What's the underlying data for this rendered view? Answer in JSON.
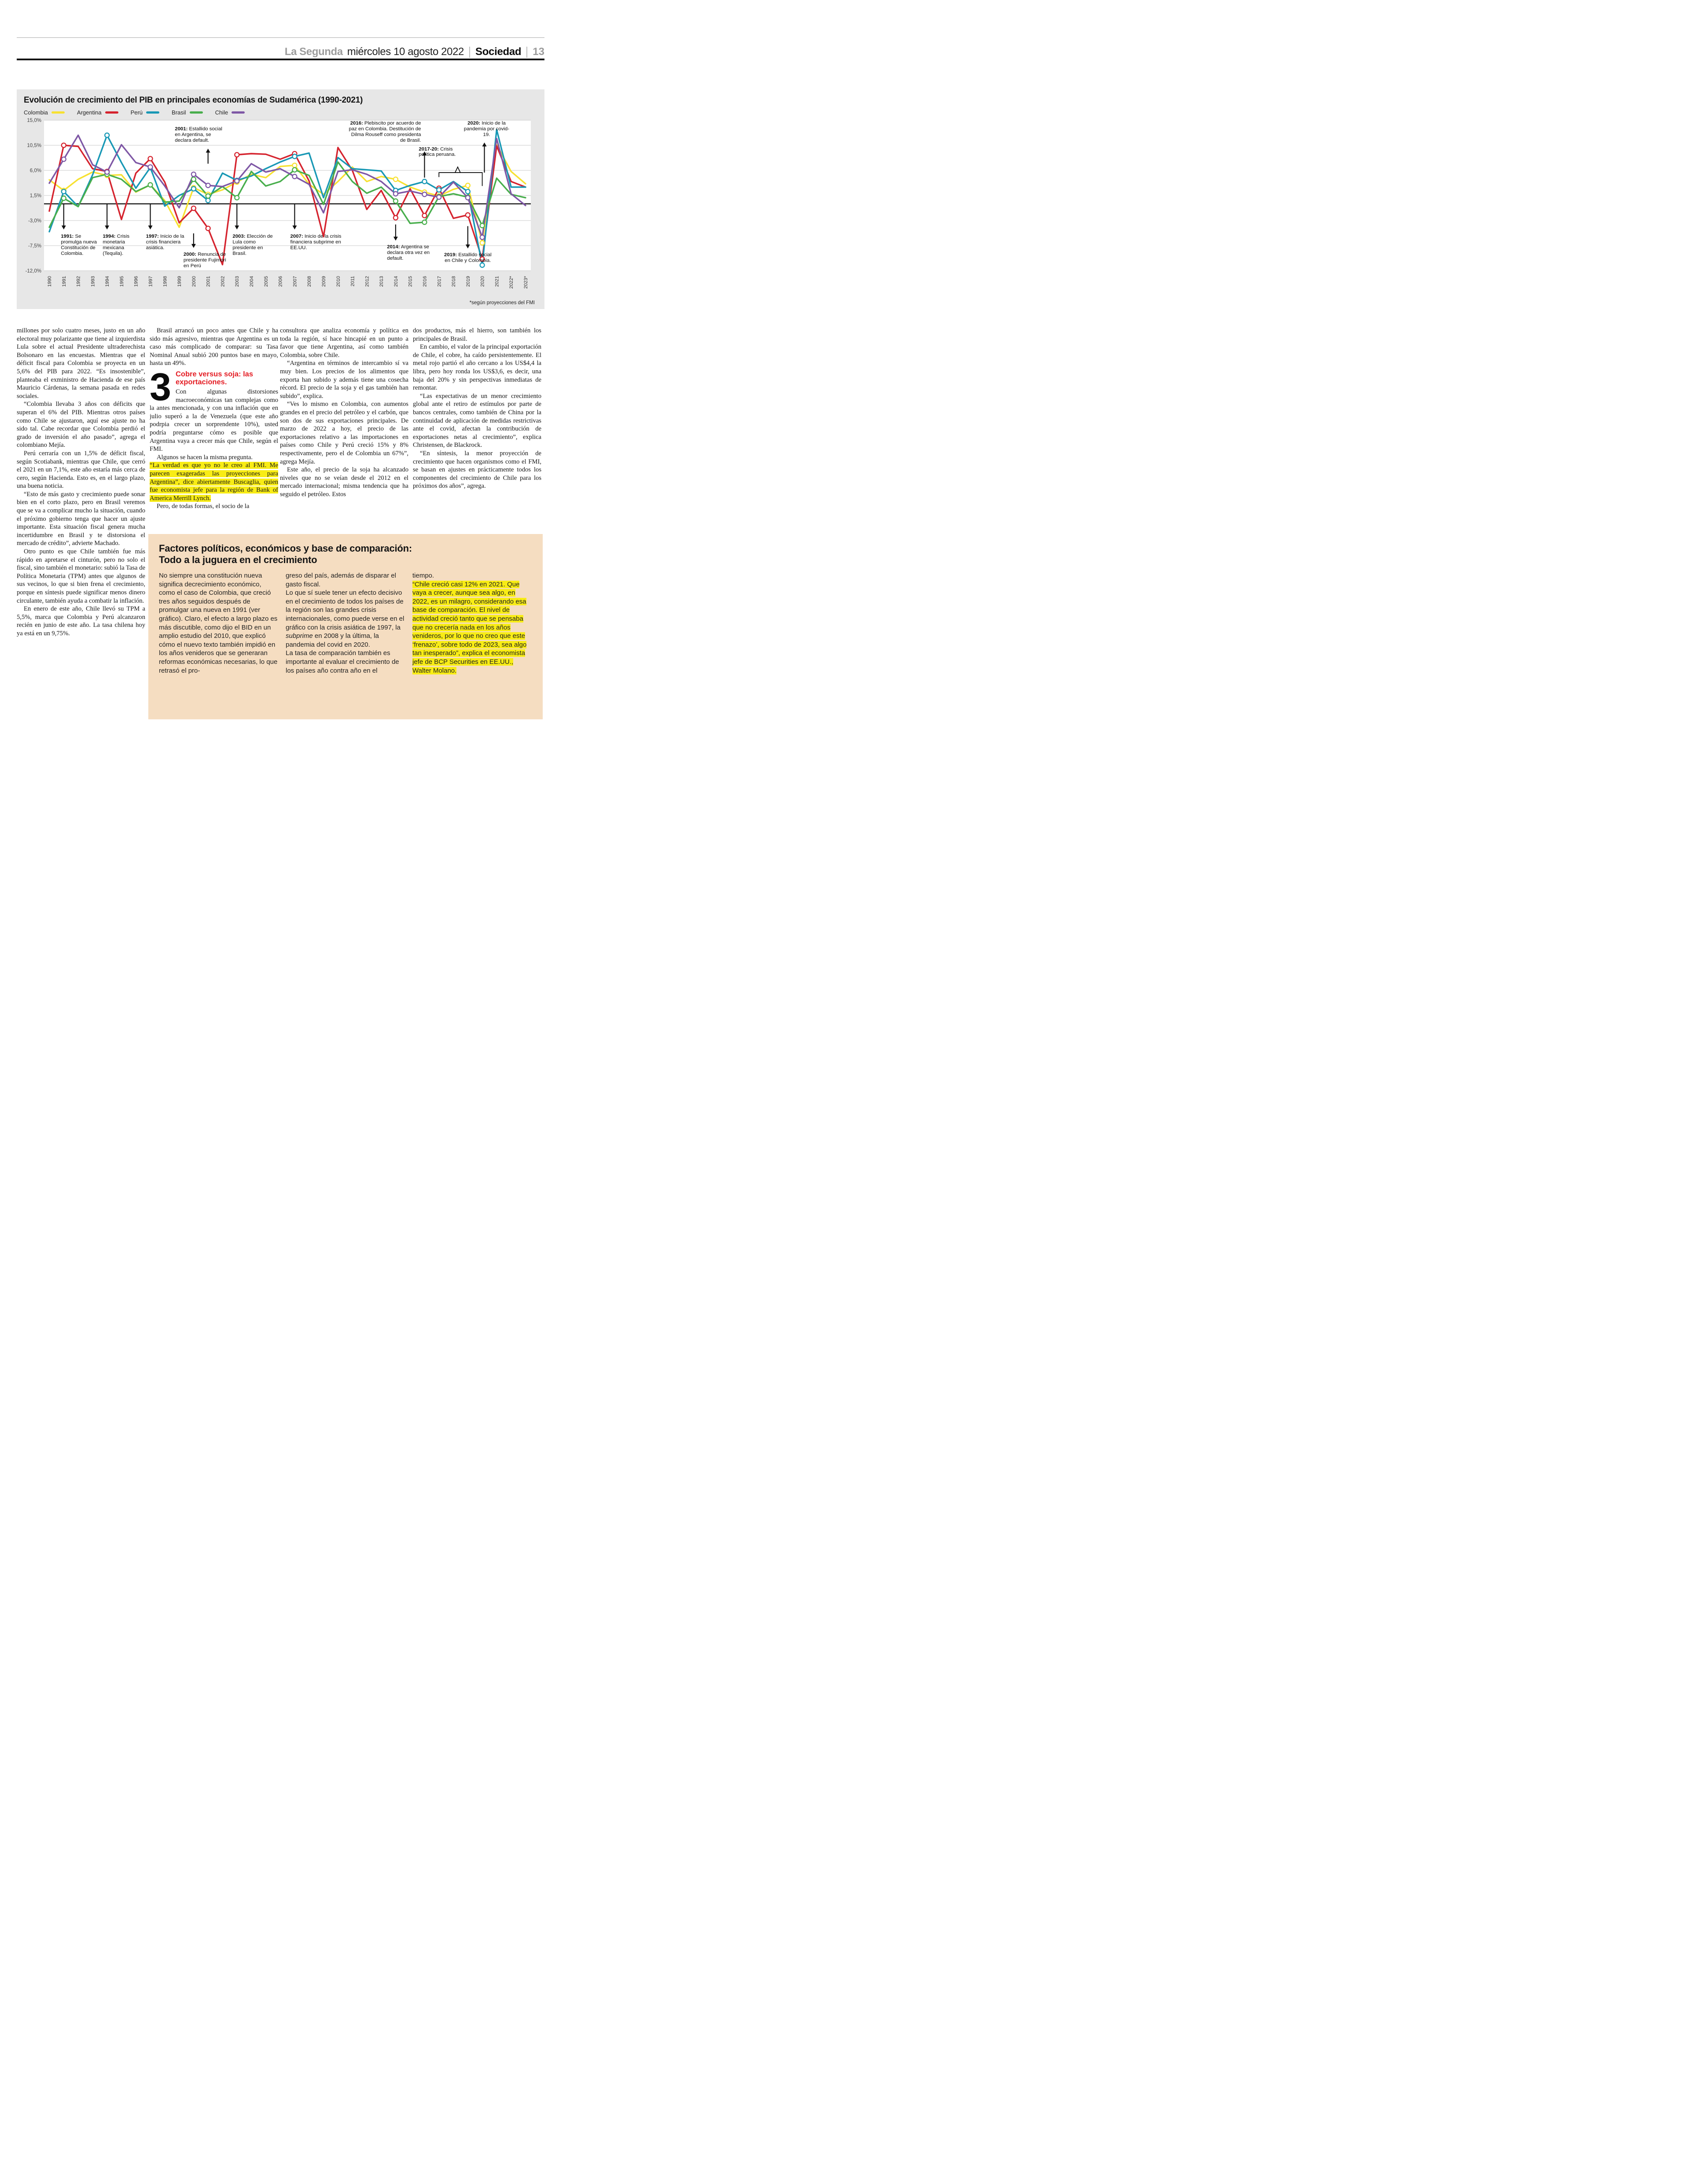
{
  "header": {
    "brand": "La Segunda",
    "date": "miércoles 10 agosto 2022",
    "section": "Sociedad",
    "page_number": "13"
  },
  "chart_data": {
    "type": "line",
    "title": "Evolución de crecimiento del PIB en principales economías de Sudamérica (1990-2021)",
    "footnote": "*según proyecciones del FMI",
    "panel_bg": "#e7e7e7",
    "plot_bg": "#ffffff",
    "ylim": [
      -12,
      15
    ],
    "yticks": [
      15.0,
      10.5,
      6.0,
      1.5,
      -3.0,
      -7.5,
      -12.0
    ],
    "zero_line": 0,
    "x": [
      "1990",
      "1991",
      "1992",
      "1993",
      "1994",
      "1995",
      "1996",
      "1997",
      "1998",
      "1999",
      "2000",
      "2001",
      "2002",
      "2003",
      "2004",
      "2005",
      "2006",
      "2007",
      "2008",
      "2009",
      "2010",
      "2011",
      "2012",
      "2013",
      "2014",
      "2015",
      "2016",
      "2017",
      "2018",
      "2019",
      "2020",
      "2021",
      "2022*",
      "2023*"
    ],
    "marker_years": [
      1991,
      1994,
      1997,
      2000,
      2001,
      2003,
      2007,
      2014,
      2016,
      2017,
      2019,
      2020
    ],
    "series": [
      {
        "name": "Colombia",
        "color": "#f7e131",
        "values": [
          4.3,
          2.4,
          4.4,
          5.7,
          5.1,
          5.2,
          2.1,
          3.4,
          0.6,
          -4.2,
          2.9,
          1.7,
          2.5,
          3.9,
          5.3,
          4.7,
          6.7,
          6.9,
          3.5,
          1.7,
          4.0,
          6.6,
          4.0,
          4.9,
          4.4,
          3.0,
          2.1,
          1.4,
          2.6,
          3.3,
          -7.0,
          10.6,
          5.8,
          3.6
        ]
      },
      {
        "name": "Argentina",
        "color": "#d5232e",
        "values": [
          -1.3,
          10.5,
          10.3,
          6.3,
          5.8,
          -2.8,
          5.5,
          8.1,
          3.9,
          -3.4,
          -0.8,
          -4.4,
          -10.9,
          8.8,
          9.0,
          8.9,
          8.0,
          9.0,
          4.1,
          -5.9,
          10.1,
          6.0,
          -1.0,
          2.4,
          -2.5,
          2.7,
          -2.1,
          2.8,
          -2.6,
          -2.0,
          -9.9,
          10.4,
          4.0,
          3.0
        ]
      },
      {
        "name": "Perú",
        "color": "#1898b5",
        "values": [
          -5.0,
          2.2,
          -0.5,
          5.2,
          12.3,
          7.4,
          2.8,
          6.5,
          -0.4,
          1.5,
          2.7,
          0.6,
          5.5,
          4.2,
          5.0,
          6.3,
          7.5,
          8.5,
          9.1,
          1.1,
          8.3,
          6.3,
          6.1,
          5.9,
          2.4,
          3.3,
          4.0,
          2.5,
          4.0,
          2.2,
          -11.0,
          13.3,
          3.0,
          3.0
        ]
      },
      {
        "name": "Brasil",
        "color": "#48ae4c",
        "values": [
          -4.2,
          1.0,
          -0.5,
          4.7,
          5.3,
          4.4,
          2.2,
          3.4,
          0.3,
          0.5,
          4.4,
          1.4,
          3.1,
          1.1,
          5.8,
          3.2,
          4.0,
          6.1,
          5.1,
          -0.1,
          7.5,
          4.0,
          1.9,
          3.0,
          0.5,
          -3.5,
          -3.3,
          1.3,
          1.8,
          1.2,
          -3.9,
          4.6,
          1.7,
          1.1
        ]
      },
      {
        "name": "Chile",
        "color": "#7e57a5",
        "values": [
          3.7,
          8.0,
          12.3,
          7.0,
          5.7,
          10.6,
          7.4,
          6.6,
          3.2,
          -0.7,
          5.3,
          3.3,
          3.1,
          4.1,
          7.2,
          5.7,
          6.3,
          4.9,
          3.5,
          -1.6,
          5.8,
          6.1,
          5.3,
          4.0,
          1.8,
          2.3,
          1.7,
          1.2,
          3.9,
          1.1,
          -6.0,
          11.7,
          1.8,
          -0.3
        ]
      }
    ],
    "annotations": [
      {
        "label": "1991:",
        "text": "Se promulga nueva Constitución de Colombia.",
        "arrow": {
          "x": 1991,
          "from": 0,
          "to": -4.6,
          "dir": "down"
        },
        "box": {
          "x": 1990.8,
          "dx": 0,
          "top": -5.4,
          "w": 95,
          "align": "left"
        }
      },
      {
        "label": "1994:",
        "text": "Crisis monetaria mexicana (Tequila).",
        "arrow": {
          "x": 1994,
          "from": 0,
          "to": -4.6,
          "dir": "down"
        },
        "box": {
          "x": 1993.7,
          "dx": 0,
          "top": -5.4,
          "w": 88,
          "align": "left"
        }
      },
      {
        "label": "1997:",
        "text": "Inicio de la crisis financiera asiática.",
        "arrow": {
          "x": 1997,
          "from": 0,
          "to": -4.6,
          "dir": "down"
        },
        "box": {
          "x": 1996.7,
          "dx": 0,
          "top": -5.4,
          "w": 88,
          "align": "left"
        }
      },
      {
        "label": "2000:",
        "text": "Renuncia de presidente Fujimori en Perú",
        "arrow": {
          "x": 2000,
          "from": -5.3,
          "to": -7.9,
          "dir": "down"
        },
        "box": {
          "x": 1999.3,
          "dx": 0,
          "top": -8.6,
          "w": 112,
          "align": "left"
        }
      },
      {
        "label": "2001:",
        "text": "Estallido social en Argentina, se declara default.",
        "arrow": {
          "x": 2001,
          "from": 7.2,
          "to": 9.9,
          "dir": "up"
        },
        "box": {
          "x": 1998.7,
          "dx": 0,
          "top": 13.9,
          "w": 108,
          "align": "left"
        }
      },
      {
        "label": "2003:",
        "text": "Elección de Lula como presidente en Brasil.",
        "arrow": {
          "x": 2003,
          "from": 0,
          "to": -4.6,
          "dir": "down"
        },
        "box": {
          "x": 2002.7,
          "dx": 0,
          "top": -5.4,
          "w": 92,
          "align": "left"
        }
      },
      {
        "label": "2007:",
        "text": "Inicio de la crisis financiera subprime en EE.UU.",
        "arrow": {
          "x": 2007,
          "from": 0,
          "to": -4.6,
          "dir": "down"
        },
        "box": {
          "x": 2006.7,
          "dx": 0,
          "top": -5.4,
          "w": 122,
          "align": "left"
        }
      },
      {
        "label": "2014:",
        "text": "Argentina se declara otra vez en default.",
        "arrow": {
          "x": 2014,
          "from": -3.7,
          "to": -6.6,
          "dir": "down"
        },
        "box": {
          "x": 2013.4,
          "dx": 0,
          "top": -7.3,
          "w": 105,
          "align": "left"
        }
      },
      {
        "label": "2016:",
        "text": "Plebiscito por acuerdo de paz en Colombia. Destitución de Dilma Rouseff como presidenta de Brasil.",
        "arrow": {
          "x": 2016,
          "from": 4.7,
          "to": 9.4,
          "dir": "up"
        },
        "box": {
          "x": 2016,
          "dx": -8,
          "top": 14.9,
          "w": 172,
          "align": "right"
        }
      },
      {
        "type": "bracket",
        "from": 2017,
        "to": 2020,
        "level": 5.6,
        "caret_x": 2018.3,
        "label": "2017-20:",
        "text": "Crisis política peruana.",
        "box": {
          "x": 2015.6,
          "dx": 0,
          "top": 10.3,
          "w": 92,
          "align": "left"
        }
      },
      {
        "label": "2019:",
        "text": "Estallido social en Chile y Colombia.",
        "arrow": {
          "x": 2019,
          "from": -4.0,
          "to": -8.0,
          "dir": "down"
        },
        "box": {
          "x": 2019,
          "dx": 0,
          "top": -8.7,
          "w": 110,
          "align": "center"
        }
      },
      {
        "label": "2020:",
        "text": "Inicio de la pandemia por covid-19.",
        "arrow": {
          "x": 2020.15,
          "from": 5.6,
          "to": 11.0,
          "dir": "up"
        },
        "box": {
          "x": 2020.3,
          "dx": 0,
          "top": 14.9,
          "w": 112,
          "align": "center"
        }
      }
    ]
  },
  "article": {
    "columns": [
      {
        "items": [
          {
            "type": "p",
            "indent": false,
            "runs": [
              {
                "t": "millones por solo cuatro meses, justo en un año electoral muy polarizante que tiene al izquierdista Lula sobre el actual Presidente ultraderechista Bolsonaro en las encuestas. Mientras que el déficit fiscal para Colombia se proyecta en un 5,6% del PIB para 2022. “Es insostenible”, planteaba el exministro de Hacienda de ese país Mauricio Cárdenas, la semana pasada en redes sociales."
              }
            ]
          },
          {
            "type": "p",
            "indent": true,
            "runs": [
              {
                "t": "“Colombia llevaba 3 años con déficits que superan el 6% del PIB. Mientras otros países como Chile se ajustaron, aquí ese ajuste no ha sido tal. Cabe recordar que Colombia perdió el grado de inversión el año pasado”, agrega el colombiano Mejía."
              }
            ]
          },
          {
            "type": "p",
            "indent": true,
            "runs": [
              {
                "t": "Perú cerraría con un 1,5% de déficit fiscal, según Scotiabank, mientras que Chile, que cerró el 2021 en un 7,1%, este año estaría más cerca de cero, según Hacienda. Esto es, en el largo plazo, una buena noticia."
              }
            ]
          },
          {
            "type": "p",
            "indent": true,
            "runs": [
              {
                "t": "“Esto de más gasto y crecimiento puede sonar bien en el corto plazo, pero en Brasil veremos que se va a complicar mucho la situación, cuando el próximo gobierno tenga que hacer un ajuste importante. Esta situación fiscal genera mucha incertidumbre en Brasil y te distorsiona el mercado de crédito”, advierte Machado."
              }
            ]
          },
          {
            "type": "p",
            "indent": true,
            "runs": [
              {
                "t": "Otro punto es que Chile también fue más rápido en apretarse el cinturón, pero no solo el fiscal, sino también el monetario: subió la Tasa de Política Monetaria (TPM) antes que algunos de sus vecinos, lo que si bien frena el crecimiento, porque en síntesis puede significar menos dinero circulante, también ayuda a combatir la inflación."
              }
            ]
          },
          {
            "type": "p",
            "indent": true,
            "runs": [
              {
                "t": "En enero de este año, Chile llevó su TPM a 5,5%, marca que Colombia y Perú alcanzaron recién en junio de este año. La tasa chilena hoy ya está en un 9,75%."
              }
            ]
          }
        ]
      },
      {
        "items": [
          {
            "type": "p",
            "indent": true,
            "runs": [
              {
                "t": "Brasil arrancó un poco antes que Chile y ha sido más agresivo, mientras que Argentina es un caso más complicado de comparar: su Tasa Nominal Anual subió 200 puntos base en mayo, hasta un 49%."
              }
            ]
          },
          {
            "type": "kicker",
            "number": "3",
            "heading": "Cobre versus soja: las exportaciones."
          },
          {
            "type": "p",
            "indent": false,
            "runs": [
              {
                "t": "Con algunas distorsiones macroeconómicas tan complejas como la antes mencionada, y con una inflación que en julio superó a la de Venezuela (que este año podrpia crecer un sorprendente 10%), usted podría preguntarse cómo es posible que Argentina vaya a crecer más que Chile, según el FMI."
              }
            ]
          },
          {
            "type": "p",
            "indent": true,
            "runs": [
              {
                "t": "Algunos se hacen la misma pregunta."
              }
            ]
          },
          {
            "type": "p",
            "indent": false,
            "runs": [
              {
                "t": "“La verdad es que yo no le creo al FMI. Me parecen exageradas las proyecciones para Argentina”, dice abiertamente Buscaglia, quien fue economista jefe para la región de Bank of America Merrill Lynch.",
                "hl": true
              }
            ]
          },
          {
            "type": "p",
            "indent": true,
            "runs": [
              {
                "t": "Pero, de todas formas, el socio de la"
              }
            ]
          }
        ]
      },
      {
        "items": [
          {
            "type": "p",
            "indent": false,
            "runs": [
              {
                "t": "consultora que analiza economía y política en toda la región, sí hace hincapié en un punto a favor que tiene Argentina, así como también Colombia, sobre Chile."
              }
            ]
          },
          {
            "type": "p",
            "indent": true,
            "runs": [
              {
                "t": "“Argentina en términos de intercambio sí va muy bien. Los precios de los alimentos que exporta han subido y además tiene una cosecha récord. El precio de la soja y el gas también han subido”, explica."
              }
            ]
          },
          {
            "type": "p",
            "indent": true,
            "runs": [
              {
                "t": "“Ves lo mismo en Colombia, con aumentos grandes en el precio del petróleo y el carbón, que son dos de sus exportaciones principales. De marzo de 2022 a hoy, el precio de las exportaciones relativo a las importaciones en países como Chile y Perú creció 15% y 8% respectivamente, pero el de Colombia un 67%”, agrega Mejía."
              }
            ]
          },
          {
            "type": "p",
            "indent": true,
            "runs": [
              {
                "t": "Este año, el precio de la soja ha alcanzado niveles que no se veían desde el 2012 en el mercado internacional; misma tendencia que ha seguido el petróleo. Estos"
              }
            ]
          }
        ]
      },
      {
        "items": [
          {
            "type": "p",
            "indent": false,
            "runs": [
              {
                "t": "dos productos, más el hierro, son también los principales de Brasil."
              }
            ]
          },
          {
            "type": "p",
            "indent": true,
            "runs": [
              {
                "t": "En cambio, el valor de la principal exportación de Chile, el cobre, ha caído persistentemente. El metal rojo partió el año cercano a los US$4,4 la libra, pero hoy ronda los US$3,6, es decir, una baja del 20% y sin perspectivas inmediatas de remontar."
              }
            ]
          },
          {
            "type": "p",
            "indent": true,
            "runs": [
              {
                "t": "“Las expectativas de un menor crecimiento global ante el retiro de estímulos por parte de bancos centrales, como también de China por la continuidad de aplicación de medidas restrictivas ante el covid, afectan la contribución de exportaciones netas al crecimiento”, explica Christensen, de Blackrock."
              }
            ]
          },
          {
            "type": "p",
            "indent": true,
            "runs": [
              {
                "t": "“En síntesis, la menor proyección de crecimiento que hacen organismos como el FMI, se basan en ajustes en prácticamente todos los componentes del crecimiento de Chile para los próximos dos años”, agrega."
              }
            ]
          }
        ]
      }
    ]
  },
  "feature_box": {
    "bg": "#f5ddc1",
    "highlight_color": "#f8ec15",
    "title_line1": "Factores políticos, económicos y base de comparación:",
    "title_line2": "Todo a la juguera en el crecimiento",
    "columns": [
      [
        {
          "runs": [
            {
              "t": "No siempre una constitución nueva significa decrecimiento económico, como el caso de Colombia, que creció tres años seguidos después de promulgar una nueva en 1991 (ver gráfico). Claro, el efecto a largo plazo es más discutible, como dijo el BID en un amplio estudio del 2010, que explicó cómo el nuevo texto también impidió en los años venideros que se generaran reformas económicas necesarias, lo que retrasó el pro-"
            }
          ]
        }
      ],
      [
        {
          "runs": [
            {
              "t": "greso del país, además de disparar el gasto fiscal."
            }
          ]
        },
        {
          "runs": [
            {
              "t": "Lo que sí suele tener un efecto decisivo en el crecimiento de todos los países de la región son las grandes crisis internacionales, como puede verse en el gráfico con la crisis asiática de 1997, la "
            },
            {
              "t": "subprime",
              "it": true
            },
            {
              "t": " en 2008 y la última, la pandemia del covid en 2020."
            }
          ]
        },
        {
          "runs": [
            {
              "t": "La tasa de comparación también es importante al evaluar el crecimiento de los países año contra año en el"
            }
          ]
        }
      ],
      [
        {
          "runs": [
            {
              "t": "tiempo."
            }
          ]
        },
        {
          "runs": [
            {
              "t": "“Chile creció casi 12% en 2021. Que vaya a crecer, aunque sea algo, en 2022, es un milagro, considerando esa base de comparación. El nivel de actividad creció tanto que se pensaba que no crecería nada en los años venideros, por lo que no creo que este ‘frenazo’, sobre todo de 2023, sea algo tan inesperado”, explica el economista jefe de BCP Securities en EE.UU., Walter Molano.",
              "hl": true
            }
          ]
        }
      ]
    ]
  }
}
